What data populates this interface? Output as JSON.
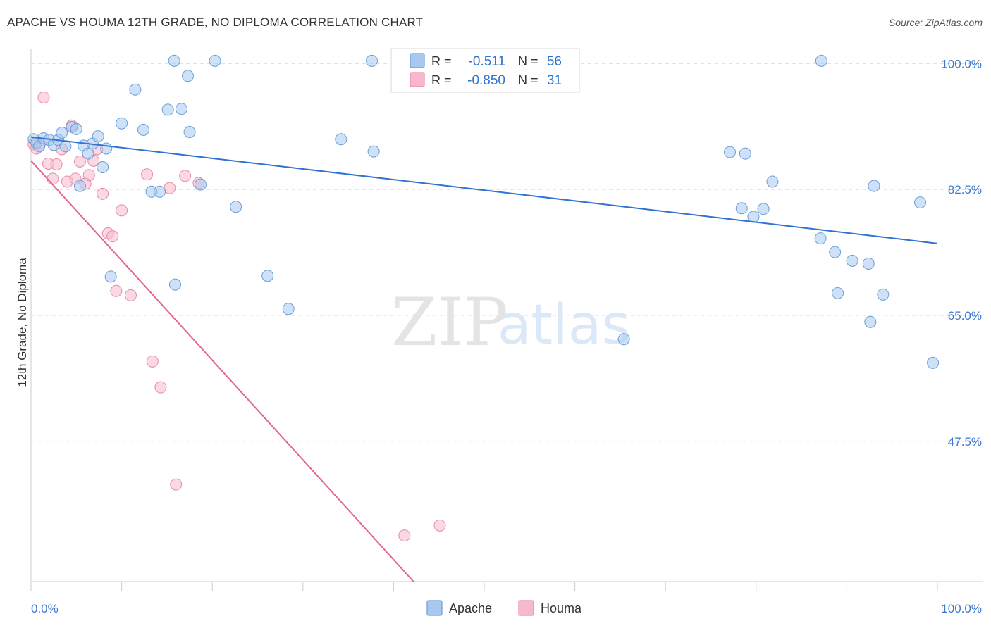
{
  "header": {
    "title": "APACHE VS HOUMA 12TH GRADE, NO DIPLOMA CORRELATION CHART",
    "source": "Source: ZipAtlas.com"
  },
  "watermark": {
    "zip": "ZIP",
    "atlas": "atlas"
  },
  "legend_stats": {
    "apache": {
      "r_label": "R =",
      "r_value": "-0.511",
      "n_label": "N =",
      "n_value": "56"
    },
    "houma": {
      "r_label": "R =",
      "r_value": "-0.850",
      "n_label": "N =",
      "n_value": "31"
    }
  },
  "colors": {
    "apache_fill": "#a8c8f0",
    "apache_stroke": "#6a9fd8",
    "apache_line": "#2f72d0",
    "houma_fill": "#f7b8cb",
    "houma_stroke": "#e88aa6",
    "houma_line": "#e2648f",
    "axis_text": "#3b78d0",
    "grid": "#dddddd"
  },
  "chart_data": {
    "type": "scatter",
    "title": "APACHE VS HOUMA 12TH GRADE, NO DIPLOMA CORRELATION CHART",
    "xlabel": "",
    "ylabel": "12th Grade, No Diploma",
    "xlim": [
      0,
      100
    ],
    "ylim": [
      28,
      102
    ],
    "x_tick_labels": [
      "0.0%",
      "100.0%"
    ],
    "y_ticks": [
      100.0,
      82.5,
      65.0,
      47.5
    ],
    "y_tick_labels": [
      "100.0%",
      "82.5%",
      "65.0%",
      "47.5%"
    ],
    "grid": true,
    "legend_position": "bottom",
    "series": [
      {
        "name": "Apache",
        "points": [
          [
            0.3,
            89.5
          ],
          [
            0.6,
            89.0
          ],
          [
            0.9,
            88.5
          ],
          [
            1.4,
            89.6
          ],
          [
            2.0,
            89.4
          ],
          [
            2.5,
            88.7
          ],
          [
            3.0,
            89.4
          ],
          [
            3.4,
            90.4
          ],
          [
            3.8,
            88.5
          ],
          [
            4.5,
            91.2
          ],
          [
            5.0,
            90.9
          ],
          [
            5.4,
            83.0
          ],
          [
            5.8,
            88.6
          ],
          [
            6.3,
            87.5
          ],
          [
            6.8,
            88.9
          ],
          [
            7.4,
            89.9
          ],
          [
            7.9,
            85.6
          ],
          [
            8.3,
            88.2
          ],
          [
            8.8,
            70.4
          ],
          [
            10.0,
            91.7
          ],
          [
            11.5,
            96.4
          ],
          [
            12.4,
            90.8
          ],
          [
            13.3,
            82.2
          ],
          [
            14.2,
            82.2
          ],
          [
            15.1,
            93.6
          ],
          [
            15.8,
            100.4
          ],
          [
            15.9,
            69.3
          ],
          [
            16.6,
            93.7
          ],
          [
            17.3,
            98.3
          ],
          [
            17.5,
            90.5
          ],
          [
            18.7,
            83.2
          ],
          [
            20.3,
            100.4
          ],
          [
            22.6,
            80.1
          ],
          [
            26.1,
            70.5
          ],
          [
            28.4,
            65.9
          ],
          [
            34.2,
            89.5
          ],
          [
            37.6,
            100.4
          ],
          [
            37.8,
            87.8
          ],
          [
            65.4,
            61.7
          ],
          [
            77.1,
            87.7
          ],
          [
            78.4,
            79.9
          ],
          [
            78.8,
            87.5
          ],
          [
            79.7,
            78.7
          ],
          [
            80.8,
            79.8
          ],
          [
            81.8,
            83.6
          ],
          [
            87.2,
            100.4
          ],
          [
            87.1,
            75.7
          ],
          [
            88.7,
            73.8
          ],
          [
            89.0,
            68.1
          ],
          [
            90.6,
            72.6
          ],
          [
            92.4,
            72.2
          ],
          [
            92.6,
            64.1
          ],
          [
            93.0,
            83.0
          ],
          [
            94.0,
            67.9
          ],
          [
            98.1,
            80.7
          ],
          [
            99.5,
            58.4
          ]
        ]
      },
      {
        "name": "Houma",
        "points": [
          [
            0.3,
            88.8
          ],
          [
            0.6,
            88.2
          ],
          [
            1.0,
            88.9
          ],
          [
            1.4,
            95.3
          ],
          [
            1.9,
            86.1
          ],
          [
            2.4,
            84.0
          ],
          [
            2.8,
            86.0
          ],
          [
            3.4,
            88.1
          ],
          [
            4.0,
            83.6
          ],
          [
            4.5,
            91.4
          ],
          [
            4.9,
            84.0
          ],
          [
            5.4,
            86.4
          ],
          [
            6.0,
            83.3
          ],
          [
            6.4,
            84.5
          ],
          [
            6.9,
            86.5
          ],
          [
            7.3,
            88.1
          ],
          [
            7.9,
            81.9
          ],
          [
            8.5,
            76.4
          ],
          [
            9.0,
            76.0
          ],
          [
            9.4,
            68.4
          ],
          [
            10.0,
            79.6
          ],
          [
            11.0,
            67.8
          ],
          [
            12.8,
            84.6
          ],
          [
            13.4,
            58.6
          ],
          [
            14.3,
            55.0
          ],
          [
            15.3,
            82.7
          ],
          [
            16.0,
            41.5
          ],
          [
            17.0,
            84.4
          ],
          [
            18.5,
            83.4
          ],
          [
            41.2,
            34.4
          ],
          [
            45.1,
            35.8
          ]
        ]
      }
    ],
    "trend_lines": [
      {
        "name": "Apache",
        "x": [
          0,
          100
        ],
        "y": [
          89.8,
          75.0
        ]
      },
      {
        "name": "Houma",
        "x": [
          0,
          42.2
        ],
        "y": [
          86.5,
          28.0
        ]
      }
    ]
  }
}
